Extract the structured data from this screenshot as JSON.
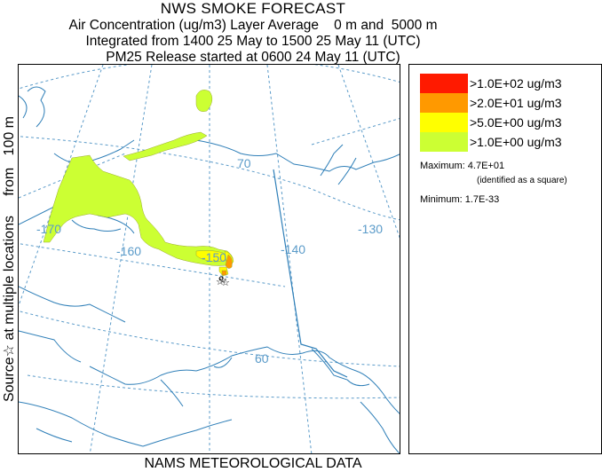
{
  "title": {
    "main": "NWS SMOKE FORECAST",
    "line1": "Air Concentration (ug/m3) Layer Average    0 m and  5000 m",
    "line2": "Integrated from 1400 25 May to 1500 25 May 11 (UTC)",
    "line3": "PM25 Release started at 0600 24 May 11 (UTC)"
  },
  "side_label": "Source☆ at multiple locations     from   100 m",
  "bottom_label": "NAMS METEOROLOGICAL DATA",
  "map": {
    "longitude_labels": [
      "-170",
      "-160",
      "-150",
      "-140",
      "-130"
    ],
    "latitude_labels": [
      "70",
      "60"
    ],
    "colors": {
      "grid": "#5b9bc9",
      "coastline": "#2f7fb8",
      "source_marker": "#000000"
    }
  },
  "legend": {
    "entries": [
      {
        "label": ">1.0E+02 ug/m3",
        "color": "#ff1a00"
      },
      {
        "label": ">2.0E+01 ug/m3",
        "color": "#ff9900"
      },
      {
        "label": ">5.0E+00 ug/m3",
        "color": "#ffff00"
      },
      {
        "label": ">1.0E+00 ug/m3",
        "color": "#ccff33"
      }
    ],
    "maximum": "Maximum: 4.7E+01",
    "maximum_note": "(identified as a square)",
    "minimum": "Minimum: 1.7E-33"
  }
}
